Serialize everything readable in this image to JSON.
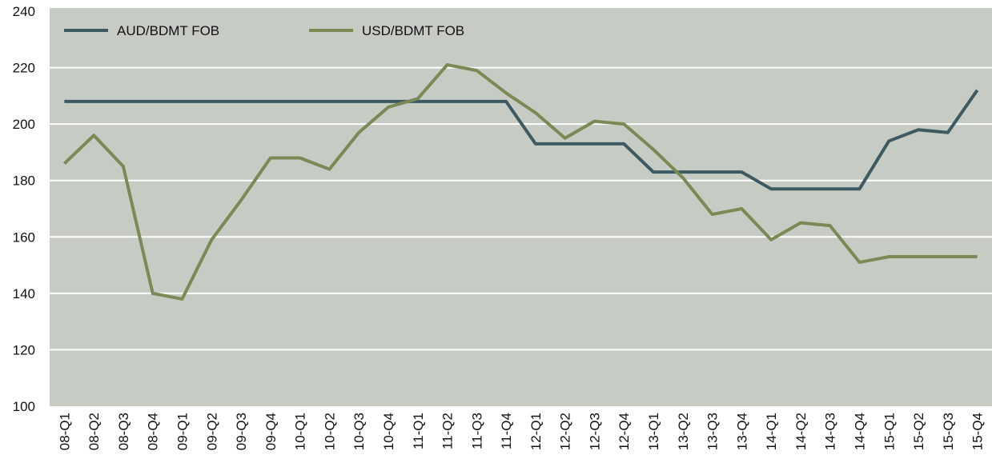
{
  "chart_data": {
    "type": "line",
    "categories": [
      "08-Q1",
      "08-Q2",
      "08-Q3",
      "08-Q4",
      "09-Q1",
      "09-Q2",
      "09-Q3",
      "09-Q4",
      "10-Q1",
      "10-Q2",
      "10-Q3",
      "10-Q4",
      "11-Q1",
      "11-Q2",
      "11-Q3",
      "11-Q4",
      "12-Q1",
      "12-Q2",
      "12-Q3",
      "12-Q4",
      "13-Q1",
      "13-Q2",
      "13-Q3",
      "13-Q4",
      "14-Q1",
      "14-Q2",
      "14-Q3",
      "14-Q4",
      "15-Q1",
      "15-Q2",
      "15-Q3",
      "15-Q4"
    ],
    "series": [
      {
        "name": "AUD/BDMT FOB",
        "color": "#3d5a63",
        "values": [
          208,
          208,
          208,
          208,
          208,
          208,
          208,
          208,
          208,
          208,
          208,
          208,
          208,
          208,
          208,
          208,
          193,
          193,
          193,
          193,
          183,
          183,
          183,
          183,
          177,
          177,
          177,
          177,
          194,
          198,
          197,
          212
        ]
      },
      {
        "name": "USD/BDMT FOB",
        "color": "#7a8a55",
        "values": [
          186,
          196,
          185,
          140,
          138,
          159,
          173,
          188,
          188,
          184,
          197,
          206,
          209,
          221,
          219,
          211,
          204,
          195,
          201,
          200,
          191,
          181,
          168,
          170,
          159,
          165,
          164,
          151,
          153,
          153,
          153,
          153
        ]
      }
    ],
    "ylim": [
      100,
      240
    ],
    "yticks": [
      100,
      120,
      140,
      160,
      180,
      200,
      220,
      240
    ],
    "grid": true,
    "legend": "top-left",
    "background": "#c6cbc4"
  }
}
